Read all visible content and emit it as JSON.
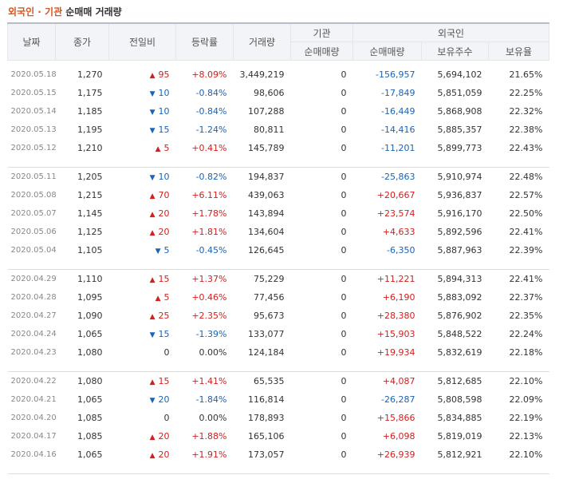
{
  "title": {
    "accent": "외국인 · 기관",
    "rest": " 순매매 거래량"
  },
  "columns": {
    "date": "날짜",
    "close": "종가",
    "change": "전일비",
    "rate": "등락률",
    "volume": "거래량",
    "inst_group": "기관",
    "inst_net": "순매매량",
    "foreign_group": "외국인",
    "foreign_net": "순매매량",
    "foreign_shares": "보유주수",
    "foreign_ratio": "보유율"
  },
  "symbols": {
    "up": "▲",
    "down": "▼"
  },
  "colors": {
    "up": "#d21f1f",
    "down": "#1a63b5",
    "accent": "#d9531e"
  },
  "groups": [
    [
      {
        "date": "2020.05.18",
        "close": "1,270",
        "dir": "up",
        "change": "95",
        "rate": "+8.09%",
        "volume": "3,449,219",
        "inst": "0",
        "foreign": "-156,957",
        "shares": "5,694,102",
        "ratio": "21.65%"
      },
      {
        "date": "2020.05.15",
        "close": "1,175",
        "dir": "down",
        "change": "10",
        "rate": "-0.84%",
        "volume": "98,606",
        "inst": "0",
        "foreign": "-17,849",
        "shares": "5,851,059",
        "ratio": "22.25%"
      },
      {
        "date": "2020.05.14",
        "close": "1,185",
        "dir": "down",
        "change": "10",
        "rate": "-0.84%",
        "volume": "107,288",
        "inst": "0",
        "foreign": "-16,449",
        "shares": "5,868,908",
        "ratio": "22.32%"
      },
      {
        "date": "2020.05.13",
        "close": "1,195",
        "dir": "down",
        "change": "15",
        "rate": "-1.24%",
        "volume": "80,811",
        "inst": "0",
        "foreign": "-14,416",
        "shares": "5,885,357",
        "ratio": "22.38%"
      },
      {
        "date": "2020.05.12",
        "close": "1,210",
        "dir": "up",
        "change": "5",
        "rate": "+0.41%",
        "volume": "145,789",
        "inst": "0",
        "foreign": "-11,201",
        "shares": "5,899,773",
        "ratio": "22.43%"
      }
    ],
    [
      {
        "date": "2020.05.11",
        "close": "1,205",
        "dir": "down",
        "change": "10",
        "rate": "-0.82%",
        "volume": "194,837",
        "inst": "0",
        "foreign": "-25,863",
        "shares": "5,910,974",
        "ratio": "22.48%"
      },
      {
        "date": "2020.05.08",
        "close": "1,215",
        "dir": "up",
        "change": "70",
        "rate": "+6.11%",
        "volume": "439,063",
        "inst": "0",
        "foreign": "+20,667",
        "shares": "5,936,837",
        "ratio": "22.57%"
      },
      {
        "date": "2020.05.07",
        "close": "1,145",
        "dir": "up",
        "change": "20",
        "rate": "+1.78%",
        "volume": "143,894",
        "inst": "0",
        "foreign": "+23,574",
        "shares": "5,916,170",
        "ratio": "22.50%"
      },
      {
        "date": "2020.05.06",
        "close": "1,125",
        "dir": "up",
        "change": "20",
        "rate": "+1.81%",
        "volume": "134,604",
        "inst": "0",
        "foreign": "+4,633",
        "shares": "5,892,596",
        "ratio": "22.41%"
      },
      {
        "date": "2020.05.04",
        "close": "1,105",
        "dir": "down",
        "change": "5",
        "rate": "-0.45%",
        "volume": "126,645",
        "inst": "0",
        "foreign": "-6,350",
        "shares": "5,887,963",
        "ratio": "22.39%"
      }
    ],
    [
      {
        "date": "2020.04.29",
        "close": "1,110",
        "dir": "up",
        "change": "15",
        "rate": "+1.37%",
        "volume": "75,229",
        "inst": "0",
        "foreign": "+11,221",
        "shares": "5,894,313",
        "ratio": "22.41%"
      },
      {
        "date": "2020.04.28",
        "close": "1,095",
        "dir": "up",
        "change": "5",
        "rate": "+0.46%",
        "volume": "77,456",
        "inst": "0",
        "foreign": "+6,190",
        "shares": "5,883,092",
        "ratio": "22.37%"
      },
      {
        "date": "2020.04.27",
        "close": "1,090",
        "dir": "up",
        "change": "25",
        "rate": "+2.35%",
        "volume": "95,673",
        "inst": "0",
        "foreign": "+28,380",
        "shares": "5,876,902",
        "ratio": "22.35%"
      },
      {
        "date": "2020.04.24",
        "close": "1,065",
        "dir": "down",
        "change": "15",
        "rate": "-1.39%",
        "volume": "133,077",
        "inst": "0",
        "foreign": "+15,903",
        "shares": "5,848,522",
        "ratio": "22.24%"
      },
      {
        "date": "2020.04.23",
        "close": "1,080",
        "dir": "none",
        "change": "0",
        "rate": "0.00%",
        "volume": "124,184",
        "inst": "0",
        "foreign": "+19,934",
        "shares": "5,832,619",
        "ratio": "22.18%"
      }
    ],
    [
      {
        "date": "2020.04.22",
        "close": "1,080",
        "dir": "up",
        "change": "15",
        "rate": "+1.41%",
        "volume": "65,535",
        "inst": "0",
        "foreign": "+4,087",
        "shares": "5,812,685",
        "ratio": "22.10%"
      },
      {
        "date": "2020.04.21",
        "close": "1,065",
        "dir": "down",
        "change": "20",
        "rate": "-1.84%",
        "volume": "116,814",
        "inst": "0",
        "foreign": "-26,287",
        "shares": "5,808,598",
        "ratio": "22.09%"
      },
      {
        "date": "2020.04.20",
        "close": "1,085",
        "dir": "none",
        "change": "0",
        "rate": "0.00%",
        "volume": "178,893",
        "inst": "0",
        "foreign": "+15,866",
        "shares": "5,834,885",
        "ratio": "22.19%"
      },
      {
        "date": "2020.04.17",
        "close": "1,085",
        "dir": "up",
        "change": "20",
        "rate": "+1.88%",
        "volume": "165,106",
        "inst": "0",
        "foreign": "+6,098",
        "shares": "5,819,019",
        "ratio": "22.13%"
      },
      {
        "date": "2020.04.16",
        "close": "1,065",
        "dir": "up",
        "change": "20",
        "rate": "+1.91%",
        "volume": "173,057",
        "inst": "0",
        "foreign": "+26,939",
        "shares": "5,812,921",
        "ratio": "22.10%"
      }
    ]
  ]
}
